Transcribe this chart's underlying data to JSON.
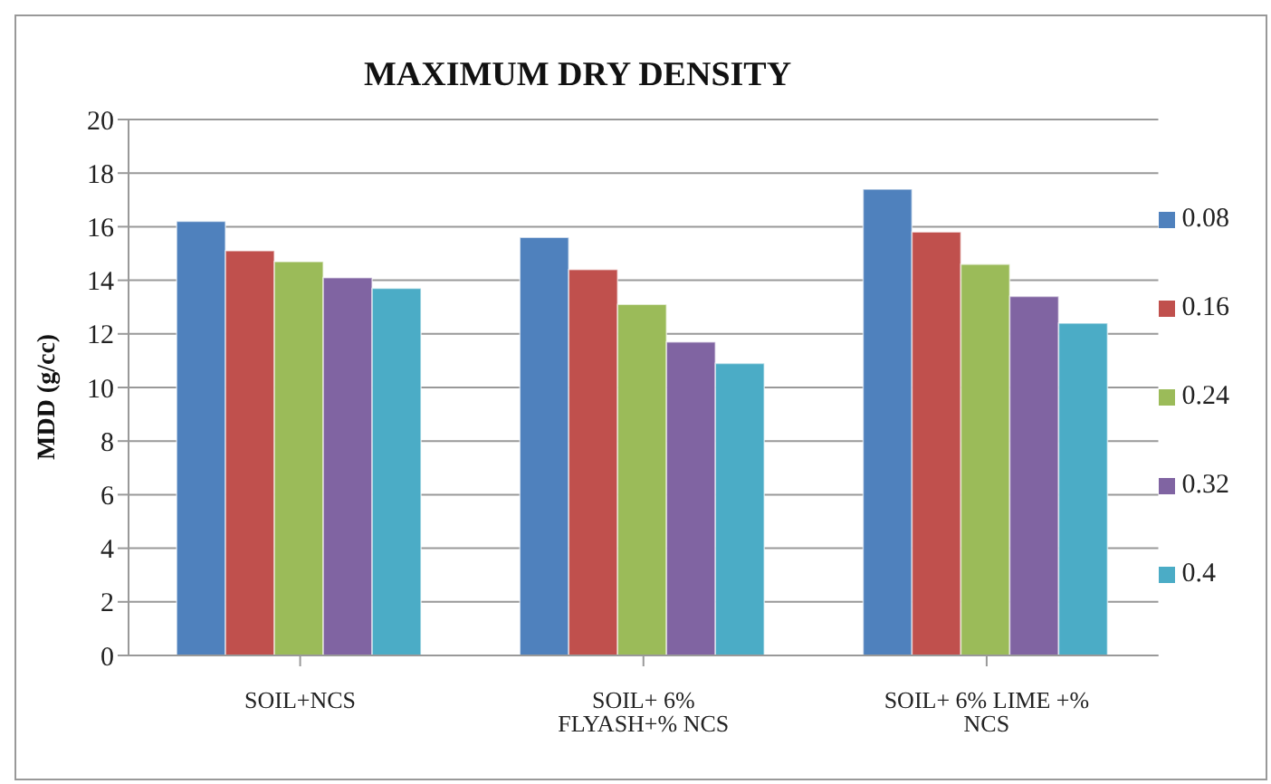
{
  "chart_data": {
    "type": "bar",
    "title": "MAXIMUM DRY DENSITY",
    "ylabel": "MDD (g/cc)",
    "categories": [
      "SOIL+NCS",
      "SOIL+ 6% FLYASH+% NCS",
      "SOIL+ 6% LIME +% NCS"
    ],
    "series": [
      {
        "name": "0.08",
        "color": "#4f81bd",
        "values": [
          16.2,
          15.6,
          17.4
        ]
      },
      {
        "name": "0.16",
        "color": "#c0504d",
        "values": [
          15.1,
          14.4,
          15.8
        ]
      },
      {
        "name": "0.24",
        "color": "#9bbb59",
        "values": [
          14.7,
          13.1,
          14.6
        ]
      },
      {
        "name": "0.32",
        "color": "#8064a2",
        "values": [
          14.1,
          11.7,
          13.4
        ]
      },
      {
        "name": "0.4",
        "color": "#4bacc6",
        "values": [
          13.7,
          10.9,
          12.4
        ]
      }
    ],
    "ylim": [
      0,
      20
    ],
    "yticks": [
      0,
      2,
      4,
      6,
      8,
      10,
      12,
      14,
      16,
      18,
      20
    ],
    "grid": "y",
    "legend": "right"
  }
}
